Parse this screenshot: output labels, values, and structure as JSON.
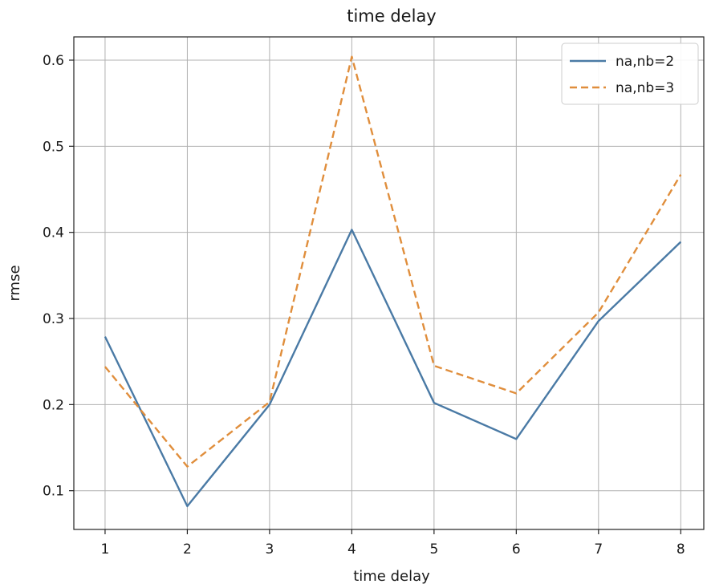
{
  "chart_data": {
    "type": "line",
    "title": "time delay",
    "xlabel": "time delay",
    "ylabel": "rmse",
    "x": [
      1,
      2,
      3,
      4,
      5,
      6,
      7,
      8
    ],
    "xticks": [
      1,
      2,
      3,
      4,
      5,
      6,
      7,
      8
    ],
    "yticks": [
      0.1,
      0.2,
      0.3,
      0.4,
      0.5,
      0.6
    ],
    "xlim": [
      0.62,
      8.28
    ],
    "ylim": [
      0.055,
      0.627
    ],
    "grid": true,
    "legend_position": "top-right",
    "series": [
      {
        "name": "na,nb=2",
        "style": "solid",
        "color": "#4a7aa5",
        "values": [
          0.279,
          0.082,
          0.2,
          0.403,
          0.202,
          0.16,
          0.297,
          0.389
        ]
      },
      {
        "name": "na,nb=3",
        "style": "dashed",
        "color": "#e08e3c",
        "values": [
          0.244,
          0.128,
          0.203,
          0.604,
          0.245,
          0.213,
          0.307,
          0.467
        ]
      }
    ]
  }
}
